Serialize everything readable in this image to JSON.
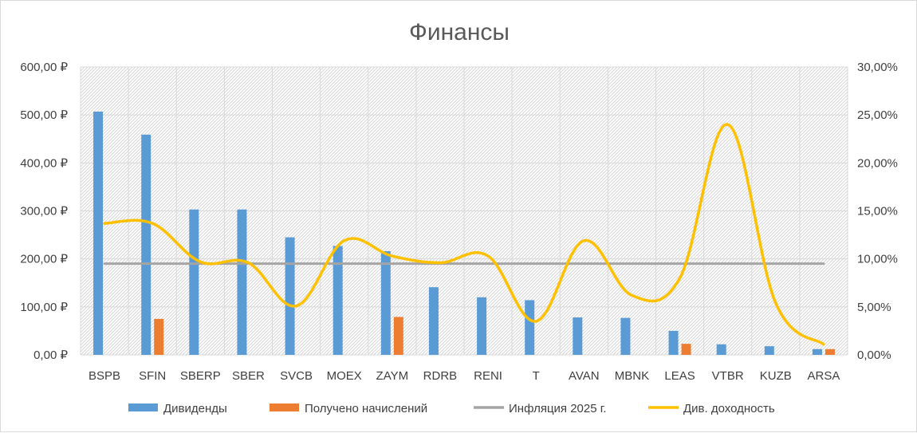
{
  "chart_data": {
    "type": "bar",
    "title": "Финансы",
    "categories": [
      "BSPB",
      "SFIN",
      "SBERP",
      "SBER",
      "SVCB",
      "MOEX",
      "ZAYM",
      "RDRB",
      "RENI",
      "T",
      "AVAN",
      "MBNK",
      "LEAS",
      "VTBR",
      "KUZB",
      "ARSA"
    ],
    "y_left": {
      "min": 0,
      "max": 600,
      "step": 100,
      "tick_labels": [
        "0,00 ₽",
        "100,00 ₽",
        "200,00 ₽",
        "300,00 ₽",
        "400,00 ₽",
        "500,00 ₽",
        "600,00 ₽"
      ]
    },
    "y_right": {
      "min": 0,
      "max": 30,
      "step": 5,
      "tick_labels": [
        "0,00%",
        "5,00%",
        "10,00%",
        "15,00%",
        "20,00%",
        "25,00%",
        "30,00%"
      ]
    },
    "grid": true,
    "legend_position": "bottom",
    "series": [
      {
        "name": "Дивиденды",
        "kind": "bar",
        "axis": "left",
        "color": "#5b9bd5",
        "values": [
          507,
          459,
          303,
          303,
          245,
          227,
          216,
          141,
          120,
          114,
          78,
          77,
          50,
          22,
          18,
          12
        ]
      },
      {
        "name": "Получено начислений",
        "kind": "bar",
        "axis": "left",
        "color": "#ed7d31",
        "values": [
          null,
          75,
          null,
          null,
          null,
          null,
          79,
          null,
          null,
          null,
          null,
          null,
          23,
          null,
          null,
          12
        ]
      },
      {
        "name": "Инфляция 2025 г.",
        "kind": "line",
        "axis": "right",
        "color": "#a5a5a5",
        "values": [
          9.5,
          9.5,
          9.5,
          9.5,
          9.5,
          9.5,
          9.5,
          9.5,
          9.5,
          9.5,
          9.5,
          9.5,
          9.5,
          9.5,
          9.5,
          9.5
        ]
      },
      {
        "name": "Див. доходность",
        "kind": "line",
        "axis": "right",
        "color": "#ffc000",
        "values": [
          13.7,
          13.7,
          9.7,
          9.6,
          5.1,
          11.9,
          10.3,
          9.6,
          10.3,
          3.5,
          11.9,
          6.2,
          8.0,
          24.0,
          5.4,
          1.1
        ]
      }
    ]
  }
}
